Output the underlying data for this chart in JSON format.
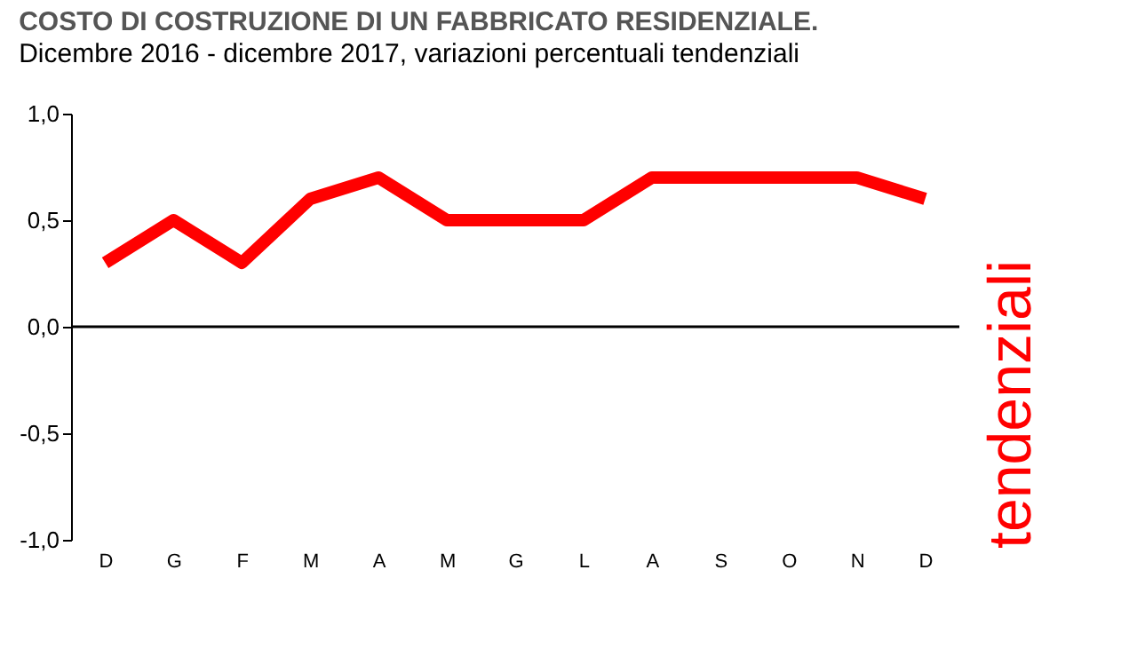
{
  "chart_data": {
    "type": "line",
    "title": "COSTO DI COSTRUZIONE DI UN FABBRICATO RESIDENZIALE.",
    "subtitle": "Dicembre 2016 - dicembre 2017, variazioni percentuali tendenziali",
    "categories": [
      "D",
      "G",
      "F",
      "M",
      "A",
      "M",
      "G",
      "L",
      "A",
      "S",
      "O",
      "N",
      "D"
    ],
    "series": [
      {
        "color": "#ff0000",
        "values": [
          0.3,
          0.5,
          0.3,
          0.6,
          0.7,
          0.5,
          0.5,
          0.5,
          0.7,
          0.7,
          0.7,
          0.7,
          0.6
        ]
      }
    ],
    "ylim": [
      -1.0,
      1.0
    ],
    "yticks": [
      {
        "value": -1.0,
        "label": "-1,0"
      },
      {
        "value": -0.5,
        "label": "-0,5"
      },
      {
        "value": 0.0,
        "label": "0,0"
      },
      {
        "value": 0.5,
        "label": "0,5"
      },
      {
        "value": 1.0,
        "label": "1,0"
      }
    ],
    "ref_lines": [
      {
        "axis": "y",
        "value": 0,
        "color": "#000000"
      }
    ],
    "annotations": [
      "tendenziali"
    ],
    "grid": false,
    "marker": "none",
    "line_style": "solid"
  }
}
